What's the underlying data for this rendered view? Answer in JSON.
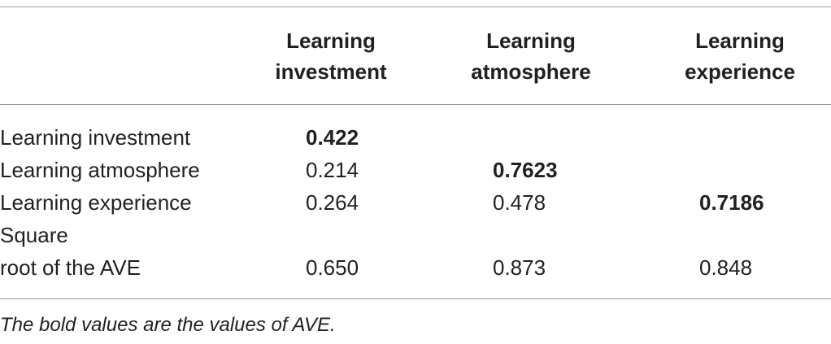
{
  "table": {
    "columns": [
      "Learning investment",
      "Learning atmosphere",
      "Learning experience"
    ],
    "rows": [
      {
        "label": [
          "Learning investment"
        ],
        "cells": [
          "0.422",
          null,
          null
        ],
        "bold": 0
      },
      {
        "label": [
          "Learning atmosphere"
        ],
        "cells": [
          "0.214",
          "0.7623",
          null
        ],
        "bold": 1
      },
      {
        "label": [
          "Learning experience"
        ],
        "cells": [
          "0.264",
          "0.478",
          "0.7186"
        ],
        "bold": 2
      },
      {
        "label": [
          "Square",
          "root of the AVE"
        ],
        "cells": [
          "0.650",
          "0.873",
          "0.848"
        ],
        "bold": null
      }
    ],
    "footnote": "The bold values are the values of AVE."
  }
}
